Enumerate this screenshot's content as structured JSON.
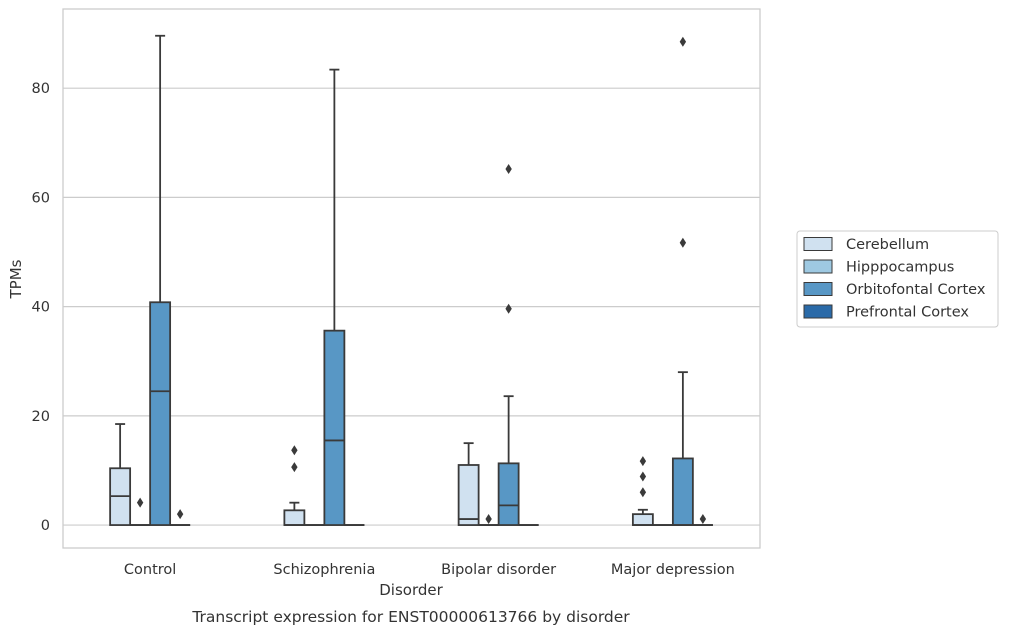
{
  "chart_data": {
    "type": "box",
    "caption": "Transcript expression for ENST00000613766 by disorder",
    "xlabel": "Disorder",
    "ylabel": "TPMs",
    "ylim": [
      -4.2,
      94.5
    ],
    "yticks": [
      0,
      20,
      40,
      60,
      80
    ],
    "grid": "horizontal",
    "legend_position": "right",
    "categories": [
      "Control",
      "Schizophrenia",
      "Bipolar disorder",
      "Major depression"
    ],
    "series": [
      {
        "name": "Cerebellum",
        "color": "#d0e1f0",
        "boxes": [
          {
            "whislo": 0,
            "q1": 0,
            "med": 5.3,
            "q3": 10.4,
            "whishi": 18.5,
            "fliers": []
          },
          {
            "whislo": 0,
            "q1": 0,
            "med": 0,
            "q3": 2.7,
            "whishi": 4.1,
            "fliers": [
              10.6,
              13.7
            ]
          },
          {
            "whislo": 0,
            "q1": 0,
            "med": 1.1,
            "q3": 11.0,
            "whishi": 15.0,
            "fliers": []
          },
          {
            "whislo": 0,
            "q1": 0,
            "med": 0,
            "q3": 2.0,
            "whishi": 2.8,
            "fliers": [
              6.0,
              8.9,
              11.7
            ]
          }
        ]
      },
      {
        "name": "Hipppocampus",
        "color": "#9ec9e2",
        "boxes": [
          {
            "whislo": 0,
            "q1": 0,
            "med": 0,
            "q3": 0,
            "whishi": 0,
            "fliers": [
              4.1
            ]
          },
          {
            "whislo": 0,
            "q1": 0,
            "med": 0,
            "q3": 0,
            "whishi": 0,
            "fliers": []
          },
          {
            "whislo": 0,
            "q1": 0,
            "med": 0,
            "q3": 0,
            "whishi": 0,
            "fliers": [
              1.1
            ]
          },
          {
            "whislo": 0,
            "q1": 0,
            "med": 0,
            "q3": 0,
            "whishi": 0,
            "fliers": []
          }
        ]
      },
      {
        "name": "Orbitofontal Cortex",
        "color": "#5897c5",
        "boxes": [
          {
            "whislo": 0,
            "q1": 0,
            "med": 24.5,
            "q3": 40.8,
            "whishi": 89.6,
            "fliers": []
          },
          {
            "whislo": 0,
            "q1": 0,
            "med": 15.5,
            "q3": 35.6,
            "whishi": 83.4,
            "fliers": []
          },
          {
            "whislo": 0,
            "q1": 0,
            "med": 3.6,
            "q3": 11.3,
            "whishi": 23.6,
            "fliers": [
              39.6,
              65.2
            ]
          },
          {
            "whislo": 0,
            "q1": 0,
            "med": 0,
            "q3": 12.2,
            "whishi": 28.0,
            "fliers": [
              51.7,
              88.5
            ]
          }
        ]
      },
      {
        "name": "Prefrontal Cortex",
        "color": "#2a6aa8",
        "boxes": [
          {
            "whislo": 0,
            "q1": 0,
            "med": 0,
            "q3": 0,
            "whishi": 0,
            "fliers": [
              2.0
            ]
          },
          {
            "whislo": 0,
            "q1": 0,
            "med": 0,
            "q3": 0,
            "whishi": 0,
            "fliers": []
          },
          {
            "whislo": 0,
            "q1": 0,
            "med": 0,
            "q3": 0,
            "whishi": 0,
            "fliers": []
          },
          {
            "whislo": 0,
            "q1": 0,
            "med": 0,
            "q3": 0,
            "whishi": 0,
            "fliers": [
              1.1
            ]
          }
        ]
      }
    ]
  }
}
